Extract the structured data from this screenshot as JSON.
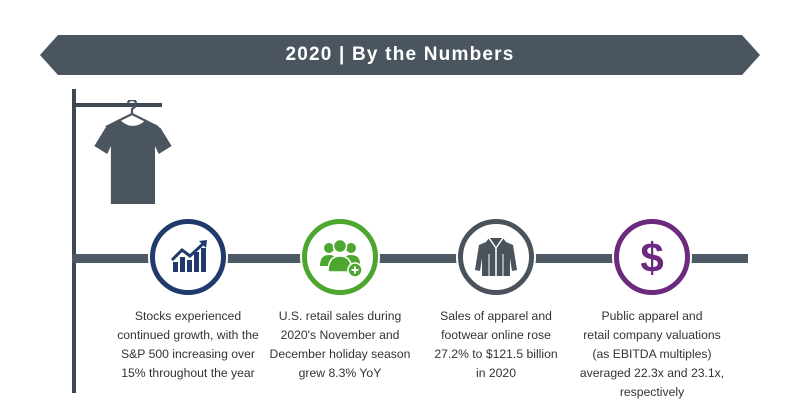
{
  "header": {
    "title": "2020 | By the Numbers",
    "color": "#4a5560"
  },
  "icons": {
    "hanger_shirt": "shirt-on-hanger-icon",
    "stats_1": "growth-chart-icon",
    "stats_2": "group-add-icon",
    "stats_3": "jacket-icon",
    "stats_4": "dollar-sign-icon"
  },
  "colors": {
    "stats_1": "#1f3a6b",
    "stats_2": "#4da62f",
    "stats_3": "#4a525b",
    "stats_4": "#6b2a7e",
    "timeline": "#4d5a66"
  },
  "stats": [
    {
      "lines": [
        "Stocks experienced",
        "continued growth, with the",
        "S&P 500 increasing over",
        "15% throughout the year"
      ]
    },
    {
      "lines": [
        "U.S. retail sales during",
        "2020's November and",
        "December holiday season",
        "grew 8.3% YoY"
      ]
    },
    {
      "lines": [
        "Sales of apparel and",
        "footwear online rose",
        "27.2% to $121.5 billion",
        "in 2020"
      ]
    },
    {
      "lines": [
        "Public apparel and",
        "retail company valuations",
        "(as EBITDA multiples)",
        "averaged 22.3x and 23.1x,",
        "respectively"
      ]
    }
  ]
}
